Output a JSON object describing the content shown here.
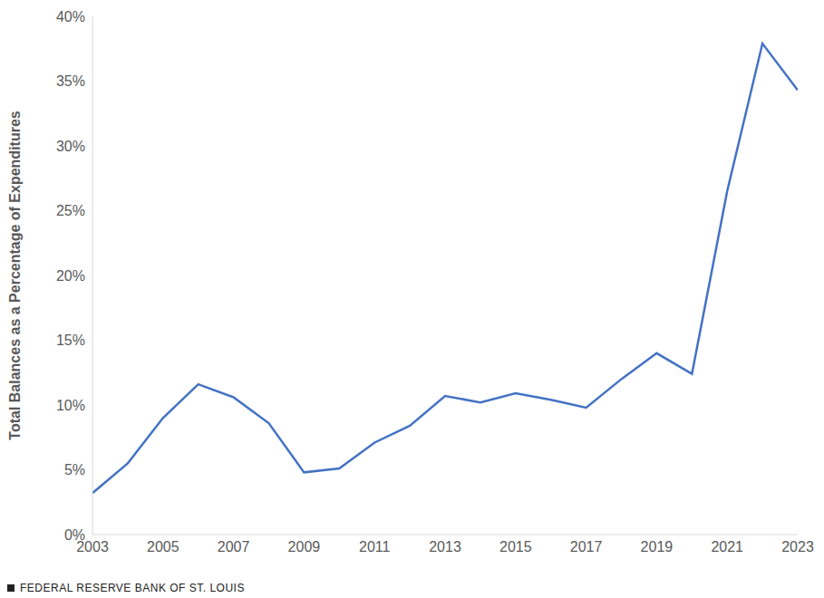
{
  "chart_data": {
    "type": "line",
    "y_label": "Total Balances as a Percentage of Expenditures",
    "source": "FEDERAL RESERVE BANK OF ST. LOUIS",
    "x": [
      2003,
      2004,
      2005,
      2006,
      2007,
      2008,
      2009,
      2010,
      2011,
      2012,
      2013,
      2014,
      2015,
      2016,
      2017,
      2018,
      2019,
      2020,
      2021,
      2022,
      2023
    ],
    "values": [
      3.2,
      5.5,
      9.0,
      11.6,
      10.6,
      8.6,
      4.8,
      5.1,
      7.1,
      8.4,
      10.7,
      10.2,
      10.9,
      10.4,
      9.8,
      12.0,
      14.0,
      12.4,
      26.5,
      37.9,
      34.3
    ],
    "color": "#4472c4",
    "xlim": [
      2003,
      2023
    ],
    "xticks": [
      2003,
      2005,
      2007,
      2009,
      2011,
      2013,
      2015,
      2017,
      2019,
      2021,
      2023
    ],
    "ylim": [
      0,
      40
    ],
    "yticks": [
      {
        "value": 0,
        "label": "0%"
      },
      {
        "value": 5,
        "label": "5%"
      },
      {
        "value": 10,
        "label": "10%"
      },
      {
        "value": 15,
        "label": "15%"
      },
      {
        "value": 20,
        "label": "20%"
      },
      {
        "value": 25,
        "label": "25%"
      },
      {
        "value": 30,
        "label": "30%"
      },
      {
        "value": 35,
        "label": "35%"
      },
      {
        "value": 40,
        "label": "40%"
      }
    ],
    "grid": false
  }
}
